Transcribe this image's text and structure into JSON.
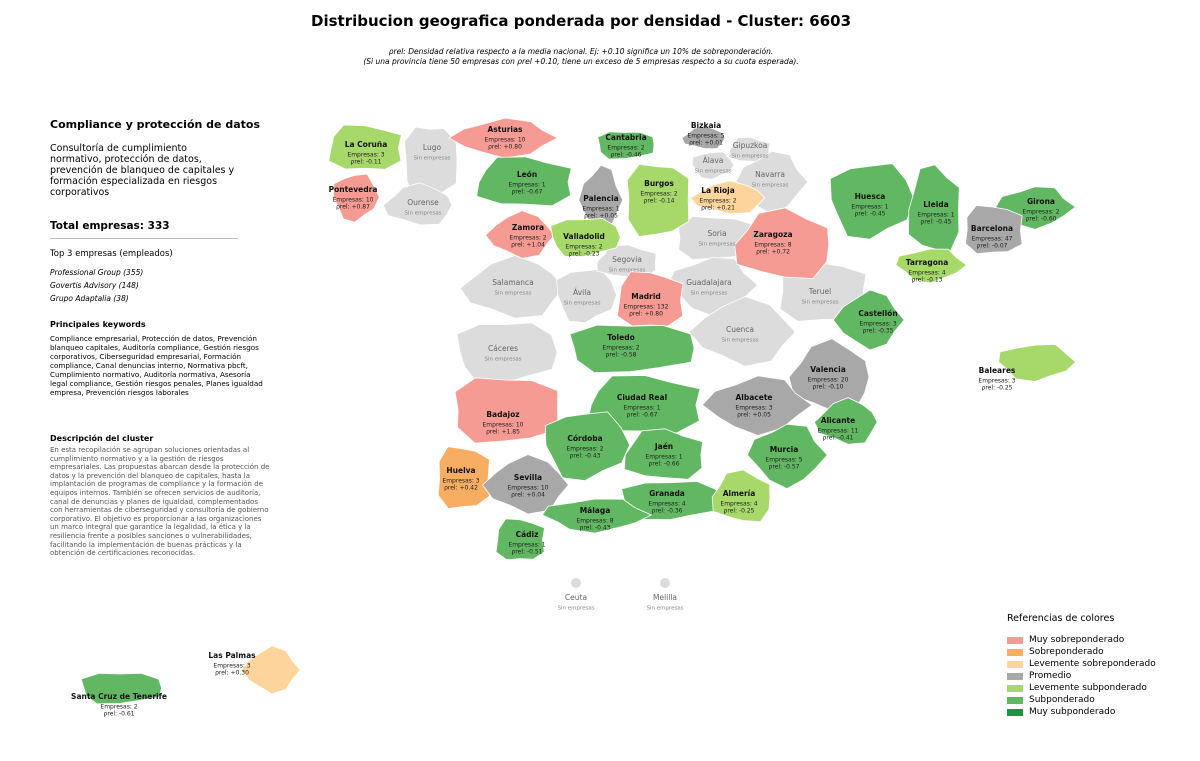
{
  "header": {
    "title": "Distribucion geografica ponderada por densidad - Cluster: 6603",
    "subtitle": [
      "ρrel: Densidad relativa respecto a la media nacional. Ej: +0.10 significa un 10% de sobreponderación.",
      "(Si una provincia tiene 50 empresas con ρrel +0.10, tiene un exceso de 5 empresas respecto a su cuota esperada)."
    ]
  },
  "panel": {
    "heading": "Compliance y protección de datos",
    "description": "Consultoría de cumplimiento normativo, protección de datos, prevención de blanqueo de capitales y formación especializada en riesgos corporativos",
    "total": "Total empresas: 333",
    "top_heading": "Top 3 empresas (empleados)",
    "top": [
      "Professional Group (355)",
      "Govertis Advisory (148)",
      "Grupo Adaptalia (38)"
    ],
    "keywords_heading": "Principales keywords",
    "keywords": "Compliance empresarial, Protección de datos, Prevención blanqueo capitales, Auditoría compliance, Gestión riesgos corporativos, Ciberseguridad empresarial, Formación compliance, Canal denuncias interno, Normativa pbcft, Cumplimiento normativo, Auditoría normativa, Asesoría legal compliance, Gestión riesgos penales, Planes igualdad empresa, Prevención riesgos laborales",
    "cluster_heading": "Descripción del cluster",
    "cluster": "En esta recopilación se agrupan soluciones orientadas al cumplimiento normativo y a la gestión de riesgos empresariales. Las propuestas abarcan desde la protección de datos y la prevención del blanqueo de capitales, hasta la implantación de programas de compliance y la formación de equipos internos. También se ofrecen servicios de auditoría, canal de denuncias y planes de igualdad, complementados con herramientas de ciberseguridad y consultoría de gobierno corporativo. El objetivo es proporcionar a las organizaciones un marco integral que garantice la legalidad, la ética y la resiliencia frente a posibles sanciones o vulnerabilidades, facilitando la implementación de buenas prácticas y la obtención de certificaciones reconocidas."
  },
  "legend": {
    "title": "Referencias de colores",
    "items": [
      {
        "label": "Muy sobreponderado",
        "color": "#f69b93"
      },
      {
        "label": "Sobreponderado",
        "color": "#f7ad62"
      },
      {
        "label": "Levemente sobreponderado",
        "color": "#fdd59c"
      },
      {
        "label": "Promedio",
        "color": "#a8a8a8"
      },
      {
        "label": "Levemente subponderado",
        "color": "#a6d96a"
      },
      {
        "label": "Subponderado",
        "color": "#62b862"
      },
      {
        "label": "Muy subponderado",
        "color": "#1a9641"
      }
    ]
  },
  "provinces": [
    {
      "name": "Lugo",
      "color": "#dcdcdc",
      "lines": [
        "Sin empresas"
      ]
    },
    {
      "name": "Ourense",
      "color": "#dcdcdc",
      "lines": [
        "Sin empresas"
      ]
    },
    {
      "name": "Álava",
      "color": "#dcdcdc",
      "lines": [
        "Sin empresas"
      ]
    },
    {
      "name": "Gipuzkoa",
      "color": "#dcdcdc",
      "lines": [
        "Sin empresas"
      ]
    },
    {
      "name": "Navarra",
      "color": "#dcdcdc",
      "lines": [
        "Sin empresas"
      ]
    },
    {
      "name": "Soria",
      "color": "#dcdcdc",
      "lines": [
        "Sin empresas"
      ]
    },
    {
      "name": "Salamanca",
      "color": "#dcdcdc",
      "lines": [
        "Sin empresas"
      ]
    },
    {
      "name": "Ávila",
      "color": "#dcdcdc",
      "lines": [
        "Sin empresas"
      ]
    },
    {
      "name": "Segovia",
      "color": "#dcdcdc",
      "lines": [
        "Sin empresas"
      ]
    },
    {
      "name": "Guadalajara",
      "color": "#dcdcdc",
      "lines": [
        "Sin empresas"
      ]
    },
    {
      "name": "Teruel",
      "color": "#dcdcdc",
      "lines": [
        "Sin empresas"
      ]
    },
    {
      "name": "Cuenca",
      "color": "#dcdcdc",
      "lines": [
        "Sin empresas"
      ]
    },
    {
      "name": "Cáceres",
      "color": "#dcdcdc",
      "lines": [
        "Sin empresas"
      ]
    },
    {
      "name": "Ceuta",
      "color": "#dcdcdc",
      "lines": [
        "Sin empresas"
      ]
    },
    {
      "name": "Melilla",
      "color": "#dcdcdc",
      "lines": [
        "Sin empresas"
      ]
    },
    {
      "name": "La Coruña",
      "color": "#a6d96a",
      "lines": [
        "Empresas: 3",
        "ρrel: -0.11"
      ]
    },
    {
      "name": "Asturias",
      "color": "#f69b93",
      "lines": [
        "Empresas: 10",
        "ρrel: +0.80"
      ]
    },
    {
      "name": "Cantabria",
      "color": "#62b862",
      "lines": [
        "Empresas: 2",
        "ρrel: -0.46"
      ]
    },
    {
      "name": "Bizkaia",
      "color": "#a8a8a8",
      "lines": [
        "Empresas: 5",
        "ρrel: +0.01"
      ]
    },
    {
      "name": "Pontevedra",
      "color": "#f69b93",
      "lines": [
        "Empresas: 10",
        "ρrel: +0.87"
      ]
    },
    {
      "name": "León",
      "color": "#62b862",
      "lines": [
        "Empresas: 1",
        "ρrel: -0.67"
      ]
    },
    {
      "name": "Palencia",
      "color": "#a8a8a8",
      "lines": [
        "Empresas: 1",
        "ρrel: +0.05"
      ]
    },
    {
      "name": "Burgos",
      "color": "#a6d96a",
      "lines": [
        "Empresas: 2",
        "ρrel: -0.14"
      ]
    },
    {
      "name": "La Rioja",
      "color": "#fdd59c",
      "lines": [
        "Empresas: 2",
        "ρrel: +0.21"
      ]
    },
    {
      "name": "Huesca",
      "color": "#62b862",
      "lines": [
        "Empresas: 1",
        "ρrel: -0.45"
      ]
    },
    {
      "name": "Lleida",
      "color": "#62b862",
      "lines": [
        "Empresas: 1",
        "ρrel: -0.45"
      ]
    },
    {
      "name": "Girona",
      "color": "#62b862",
      "lines": [
        "Empresas: 2",
        "ρrel: -0.60"
      ]
    },
    {
      "name": "Barcelona",
      "color": "#a8a8a8",
      "lines": [
        "Empresas: 47",
        "ρrel: -0.07"
      ]
    },
    {
      "name": "Zamora",
      "color": "#f69b93",
      "lines": [
        "Empresas: 2",
        "ρrel: +1.04"
      ]
    },
    {
      "name": "Valladolid",
      "color": "#a6d96a",
      "lines": [
        "Empresas: 2",
        "ρrel: -0.23"
      ]
    },
    {
      "name": "Zaragoza",
      "color": "#f69b93",
      "lines": [
        "Empresas: 8",
        "ρrel: +0.72"
      ]
    },
    {
      "name": "Tarragona",
      "color": "#a6d96a",
      "lines": [
        "Empresas: 4",
        "ρrel: -0.13"
      ]
    },
    {
      "name": "Madrid",
      "color": "#f69b93",
      "lines": [
        "Empresas: 132",
        "ρrel: +0.80"
      ]
    },
    {
      "name": "Castellón",
      "color": "#62b862",
      "lines": [
        "Empresas: 3",
        "ρrel: -0.35"
      ]
    },
    {
      "name": "Toledo",
      "color": "#62b862",
      "lines": [
        "Empresas: 2",
        "ρrel: -0.58"
      ]
    },
    {
      "name": "Valencia",
      "color": "#a8a8a8",
      "lines": [
        "Empresas: 20",
        "ρrel: -0.10"
      ]
    },
    {
      "name": "Baleares",
      "color": "#a6d96a",
      "lines": [
        "Empresas: 3",
        "ρrel: -0.25"
      ]
    },
    {
      "name": "Ciudad Real",
      "color": "#62b862",
      "lines": [
        "Empresas: 1",
        "ρrel: -0.67"
      ]
    },
    {
      "name": "Albacete",
      "color": "#a8a8a8",
      "lines": [
        "Empresas: 3",
        "ρrel: +0.05"
      ]
    },
    {
      "name": "Badajoz",
      "color": "#f69b93",
      "lines": [
        "Empresas: 10",
        "ρrel: +1.85"
      ]
    },
    {
      "name": "Alicante",
      "color": "#62b862",
      "lines": [
        "Empresas: 11",
        "ρrel: -0.41"
      ]
    },
    {
      "name": "Córdoba",
      "color": "#62b862",
      "lines": [
        "Empresas: 2",
        "ρrel: -0.43"
      ]
    },
    {
      "name": "Jaén",
      "color": "#62b862",
      "lines": [
        "Empresas: 1",
        "ρrel: -0.66"
      ]
    },
    {
      "name": "Murcia",
      "color": "#62b862",
      "lines": [
        "Empresas: 5",
        "ρrel: -0.57"
      ]
    },
    {
      "name": "Huelva",
      "color": "#f7ad62",
      "lines": [
        "Empresas: 3",
        "ρrel: +0.42"
      ]
    },
    {
      "name": "Sevilla",
      "color": "#a8a8a8",
      "lines": [
        "Empresas: 10",
        "ρrel: +0.04"
      ]
    },
    {
      "name": "Granada",
      "color": "#62b862",
      "lines": [
        "Empresas: 4",
        "ρrel: -0.36"
      ]
    },
    {
      "name": "Almería",
      "color": "#a6d96a",
      "lines": [
        "Empresas: 4",
        "ρrel: -0.25"
      ]
    },
    {
      "name": "Málaga",
      "color": "#62b862",
      "lines": [
        "Empresas: 8",
        "ρrel: -0.43"
      ]
    },
    {
      "name": "Cádiz",
      "color": "#62b862",
      "lines": [
        "Empresas: 1",
        "ρrel: -0.51"
      ]
    },
    {
      "name": "Las Palmas",
      "color": "#fdd59c",
      "lines": [
        "Empresas: 3",
        "ρrel: +0.30"
      ]
    },
    {
      "name": "Santa Cruz de Tenerife",
      "color": "#62b862",
      "lines": [
        "Empresas: 2",
        "ρrel: -0.61"
      ]
    }
  ]
}
